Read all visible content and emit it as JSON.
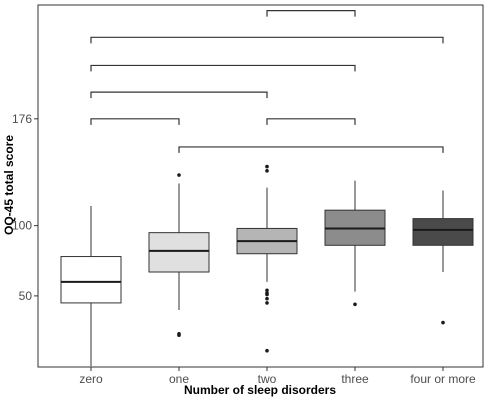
{
  "chart_data": {
    "type": "box",
    "xlabel": "Number of sleep disorders",
    "ylabel": "OQ-45 total score",
    "categories": [
      "zero",
      "one",
      "two",
      "three",
      "four or more"
    ],
    "y_ticks": [
      50,
      100,
      176
    ],
    "ylim": [
      -0.6,
      257
    ],
    "grid": false,
    "boxes": [
      {
        "category": "zero",
        "fill": "#ffffff",
        "whisker_low": 0,
        "q1": 45,
        "median": 60,
        "q3": 78,
        "whisker_high": 114,
        "outliers": []
      },
      {
        "category": "one",
        "fill": "#e0e0e0",
        "whisker_low": 40,
        "q1": 67,
        "median": 82,
        "q3": 95,
        "whisker_high": 130,
        "outliers": [
          22,
          23,
          136
        ]
      },
      {
        "category": "two",
        "fill": "#b5b5b5",
        "whisker_low": 60,
        "q1": 80,
        "median": 89,
        "q3": 98,
        "whisker_high": 127,
        "outliers": [
          11,
          45,
          48,
          51,
          52,
          54,
          139,
          142
        ]
      },
      {
        "category": "three",
        "fill": "#8c8c8c",
        "whisker_low": 53,
        "q1": 86,
        "median": 98,
        "q3": 111,
        "whisker_high": 132,
        "outliers": [
          44
        ]
      },
      {
        "category": "four or more",
        "fill": "#4a4a4a",
        "whisker_low": 67,
        "q1": 86,
        "median": 97,
        "q3": 105,
        "whisker_high": 125,
        "outliers": [
          31
        ]
      }
    ],
    "comparison_brackets": [
      {
        "from": "two",
        "to": "three",
        "y": 253
      },
      {
        "from": "zero",
        "to": "four or more",
        "y": 234
      },
      {
        "from": "zero",
        "to": "three",
        "y": 214
      },
      {
        "from": "zero",
        "to": "two",
        "y": 195
      },
      {
        "from": "zero",
        "to": "one",
        "y": 176
      },
      {
        "from": "two",
        "to": "three",
        "y": 176
      },
      {
        "from": "one",
        "to": "four or more",
        "y": 156
      }
    ]
  }
}
